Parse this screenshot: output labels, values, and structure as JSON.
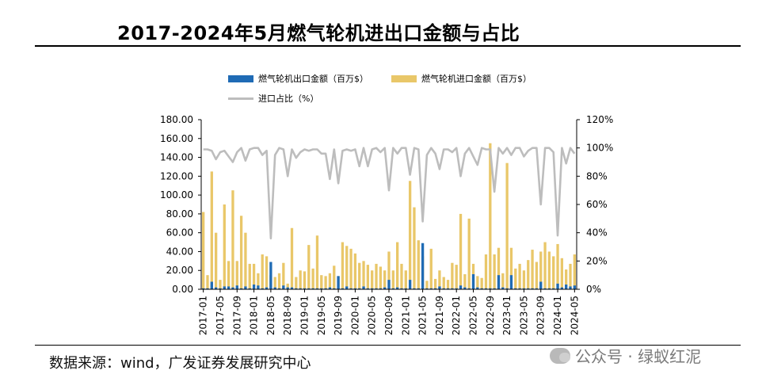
{
  "title": "2017-2024年5月燃气轮机进出口金额与占比",
  "source": "数据来源：wind，广发证券发展研究中心",
  "watermark": "公众号 · 绿蚁红泥",
  "colors": {
    "export": "#1f6bb5",
    "import": "#e9c769",
    "ratio": "#bdbdbd",
    "axis": "#000000"
  },
  "chart_data": {
    "type": "bar",
    "legend_position": "top",
    "left_axis": {
      "ylim": [
        0,
        180
      ],
      "ticks": [
        "0.00",
        "20.00",
        "40.00",
        "60.00",
        "80.00",
        "100.00",
        "120.00",
        "140.00",
        "160.00",
        "180.00"
      ]
    },
    "right_axis": {
      "ylim": [
        0,
        120
      ],
      "ticks": [
        "0%",
        "20%",
        "40%",
        "60%",
        "80%",
        "100%",
        "120%"
      ]
    },
    "x_tick_labels": [
      "2017-01",
      "2017-05",
      "2017-09",
      "2018-01",
      "2018-05",
      "2018-09",
      "2019-01",
      "2019-05",
      "2019-09",
      "2020-01",
      "2020-05",
      "2020-09",
      "2021-01",
      "2021-05",
      "2021-09",
      "2022-01",
      "2022-05",
      "2022-09",
      "2023-01",
      "2023-05",
      "2023-09",
      "2024-01",
      "2024-05"
    ],
    "categories": [
      "2017-01",
      "2017-02",
      "2017-03",
      "2017-04",
      "2017-05",
      "2017-06",
      "2017-07",
      "2017-08",
      "2017-09",
      "2017-10",
      "2017-11",
      "2017-12",
      "2018-01",
      "2018-02",
      "2018-03",
      "2018-04",
      "2018-05",
      "2018-06",
      "2018-07",
      "2018-08",
      "2018-09",
      "2018-10",
      "2018-11",
      "2018-12",
      "2019-01",
      "2019-02",
      "2019-03",
      "2019-04",
      "2019-05",
      "2019-06",
      "2019-07",
      "2019-08",
      "2019-09",
      "2019-10",
      "2019-11",
      "2019-12",
      "2020-01",
      "2020-02",
      "2020-03",
      "2020-04",
      "2020-05",
      "2020-06",
      "2020-07",
      "2020-08",
      "2020-09",
      "2020-10",
      "2020-11",
      "2020-12",
      "2021-01",
      "2021-02",
      "2021-03",
      "2021-04",
      "2021-05",
      "2021-06",
      "2021-07",
      "2021-08",
      "2021-09",
      "2021-10",
      "2021-11",
      "2021-12",
      "2022-01",
      "2022-02",
      "2022-03",
      "2022-04",
      "2022-05",
      "2022-06",
      "2022-07",
      "2022-08",
      "2022-09",
      "2022-10",
      "2022-11",
      "2022-12",
      "2023-01",
      "2023-02",
      "2023-03",
      "2023-04",
      "2023-05",
      "2023-06",
      "2023-07",
      "2023-08",
      "2023-09",
      "2023-10",
      "2023-11",
      "2023-12",
      "2024-01",
      "2024-02",
      "2024-03",
      "2024-04",
      "2024-05"
    ],
    "series": [
      {
        "name": "燃气轮机出口金额（百万$）",
        "axis": "left",
        "chart": "bar",
        "values": [
          1,
          1,
          8,
          2,
          1,
          3,
          3,
          2,
          4,
          1,
          3,
          1,
          5,
          4,
          1,
          2,
          29,
          2,
          1,
          4,
          2,
          2,
          1,
          1,
          1,
          1,
          1,
          1,
          1,
          1,
          2,
          1,
          14,
          1,
          3,
          1,
          1,
          1,
          3,
          1,
          1,
          1,
          1,
          2,
          10,
          1,
          2,
          1,
          1,
          10,
          1,
          1,
          49,
          1,
          1,
          1,
          3,
          1,
          1,
          1,
          1,
          4,
          2,
          1,
          16,
          2,
          1,
          1,
          1,
          1,
          15,
          2,
          1,
          15,
          1,
          1,
          1,
          1,
          1,
          1,
          8,
          1,
          1,
          1,
          6,
          2,
          5,
          3,
          4
        ]
      },
      {
        "name": "燃气轮机进口金额（百万$）",
        "axis": "left",
        "chart": "bar",
        "values": [
          82,
          15,
          125,
          60,
          10,
          90,
          30,
          105,
          30,
          78,
          60,
          27,
          27,
          17,
          37,
          35,
          15,
          13,
          17,
          28,
          6,
          65,
          13,
          20,
          19,
          47,
          22,
          57,
          15,
          14,
          17,
          25,
          14,
          50,
          46,
          43,
          38,
          28,
          30,
          26,
          20,
          27,
          24,
          20,
          40,
          20,
          50,
          27,
          20,
          115,
          87,
          52,
          35,
          9,
          43,
          11,
          20,
          13,
          10,
          28,
          26,
          80,
          16,
          75,
          27,
          14,
          12,
          37,
          155,
          37,
          44,
          17,
          134,
          44,
          22,
          27,
          20,
          31,
          42,
          29,
          40,
          50,
          40,
          35,
          48,
          33,
          21,
          27,
          37
        ]
      },
      {
        "name": "进口占比（%）",
        "axis": "right",
        "chart": "line",
        "values": [
          99,
          99,
          98,
          92,
          97,
          98,
          94,
          90,
          97,
          100,
          91,
          99,
          100,
          100,
          95,
          98,
          36,
          95,
          100,
          99,
          80,
          99,
          93,
          97,
          99,
          98,
          99,
          99,
          96,
          96,
          78,
          99,
          75,
          98,
          99,
          98,
          99,
          87,
          100,
          87,
          99,
          100,
          97,
          100,
          70,
          100,
          96,
          100,
          100,
          81,
          100,
          99,
          48,
          95,
          100,
          96,
          85,
          99,
          99,
          97,
          100,
          80,
          96,
          100,
          94,
          88,
          100,
          99,
          99,
          69,
          100,
          96,
          100,
          95,
          100,
          100,
          94,
          98,
          100,
          100,
          60,
          100,
          100,
          97,
          38,
          100,
          89,
          100,
          96
        ]
      }
    ]
  }
}
